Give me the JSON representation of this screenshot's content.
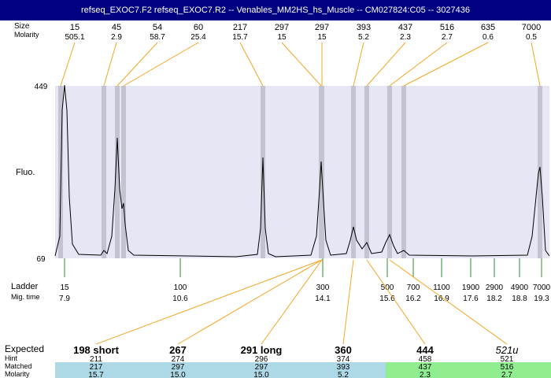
{
  "title": "refseq_EXOC7.F2  refseq_EXOC7.R2 -- Venables_MM2HS_hs_Muscle -- CM027824:C05 -- 3027436",
  "row_labels": {
    "size": "Size",
    "molarity": "Molarity",
    "y_axis": "Fluo.",
    "ladder": "Ladder",
    "mig_time": "Mig. time",
    "expected": "Expected",
    "hint": "Hint",
    "matched": "Matched",
    "molarity_bottom": "Molarity"
  },
  "colors": {
    "title_bg": "#000080",
    "plot_bg": "#e6e6f5",
    "band": "#c3c3d2",
    "leader_orange": "#f5a623",
    "ladder_green": "#2e8b2e",
    "row_blue": "#add8e6",
    "row_green": "#90ee90"
  },
  "chart_data": {
    "type": "line",
    "ylabel": "Fluo.",
    "ylim": [
      69,
      449
    ],
    "y_ticks": [
      69,
      449
    ],
    "x_axis": "migration time",
    "peaks": [
      {
        "size": "15",
        "molarity": "505.1"
      },
      {
        "size": "45",
        "molarity": "2.9"
      },
      {
        "size": "54",
        "molarity": "58.7"
      },
      {
        "size": "60",
        "molarity": "25.4"
      },
      {
        "size": "217",
        "molarity": "15.7"
      },
      {
        "size": "297",
        "molarity": "15"
      },
      {
        "size": "297",
        "molarity": "15"
      },
      {
        "size": "393",
        "molarity": "5.2"
      },
      {
        "size": "437",
        "molarity": "2.3"
      },
      {
        "size": "516",
        "molarity": "2.7"
      },
      {
        "size": "635",
        "molarity": "0.6"
      },
      {
        "size": "7000",
        "molarity": "0.5"
      }
    ],
    "ladder": [
      {
        "size": "15",
        "time": "7.9"
      },
      {
        "size": "100",
        "time": "10.6"
      },
      {
        "size": "300",
        "time": "14.1"
      },
      {
        "size": "500",
        "time": "15.6"
      },
      {
        "size": "700",
        "time": "16.2"
      },
      {
        "size": "1100",
        "time": "16.9"
      },
      {
        "size": "1900",
        "time": "17.6"
      },
      {
        "size": "2900",
        "time": "18.2"
      },
      {
        "size": "4900",
        "time": "18.8"
      },
      {
        "size": "7000",
        "time": "19.3"
      }
    ],
    "expected": [
      {
        "label": "198 short",
        "hint": "211",
        "matched": "217",
        "molarity": "15.7",
        "row_color": "blue"
      },
      {
        "label": "267",
        "hint": "274",
        "matched": "297",
        "molarity": "15.0",
        "row_color": "blue"
      },
      {
        "label": "291 long",
        "hint": "296",
        "matched": "297",
        "molarity": "15.0",
        "row_color": "blue"
      },
      {
        "label": "360",
        "hint": "374",
        "matched": "393",
        "molarity": "5.2",
        "row_color": "blue"
      },
      {
        "label": "444",
        "hint": "458",
        "matched": "437",
        "molarity": "2.3",
        "row_color": "green"
      },
      {
        "label": "521u",
        "hint": "521",
        "matched": "516",
        "molarity": "2.7",
        "row_color": "green"
      }
    ]
  }
}
